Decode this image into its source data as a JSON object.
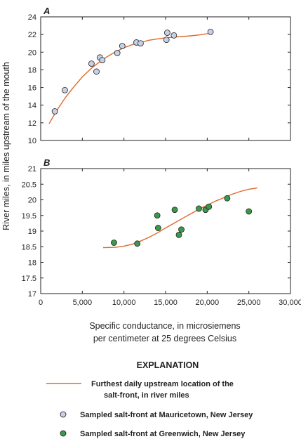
{
  "chart_data": [
    {
      "panel": "A",
      "type": "scatter",
      "xlim": [
        0,
        30000
      ],
      "ylim": [
        10,
        24
      ],
      "xticks": [
        0,
        5000,
        10000,
        15000,
        20000,
        25000,
        30000
      ],
      "xtick_labels": [
        "0",
        "5,000",
        "10,000",
        "15,000",
        "20,000",
        "25,000",
        "30,000"
      ],
      "yticks": [
        10,
        12,
        14,
        16,
        18,
        20,
        22,
        24
      ],
      "ytick_labels": [
        "10",
        "12",
        "14",
        "16",
        "18",
        "20",
        "22",
        "24"
      ],
      "points": [
        {
          "x": 1700,
          "y": 13.3
        },
        {
          "x": 2900,
          "y": 15.7
        },
        {
          "x": 6100,
          "y": 18.7
        },
        {
          "x": 6700,
          "y": 17.8
        },
        {
          "x": 7100,
          "y": 19.4
        },
        {
          "x": 7400,
          "y": 19.1
        },
        {
          "x": 9200,
          "y": 19.9
        },
        {
          "x": 9800,
          "y": 20.7
        },
        {
          "x": 11500,
          "y": 21.1
        },
        {
          "x": 12000,
          "y": 21.0
        },
        {
          "x": 15100,
          "y": 21.4
        },
        {
          "x": 15200,
          "y": 22.2
        },
        {
          "x": 16000,
          "y": 21.9
        },
        {
          "x": 20400,
          "y": 22.3
        }
      ],
      "curve": [
        {
          "x": 1000,
          "y": 11.9
        },
        {
          "x": 2000,
          "y": 13.5
        },
        {
          "x": 3000,
          "y": 14.9
        },
        {
          "x": 4000,
          "y": 16.1
        },
        {
          "x": 5000,
          "y": 17.2
        },
        {
          "x": 6000,
          "y": 18.1
        },
        {
          "x": 7000,
          "y": 18.85
        },
        {
          "x": 8000,
          "y": 19.5
        },
        {
          "x": 9000,
          "y": 20.05
        },
        {
          "x": 10000,
          "y": 20.5
        },
        {
          "x": 11000,
          "y": 20.85
        },
        {
          "x": 12000,
          "y": 21.1
        },
        {
          "x": 13000,
          "y": 21.35
        },
        {
          "x": 14000,
          "y": 21.5
        },
        {
          "x": 15000,
          "y": 21.62
        },
        {
          "x": 16000,
          "y": 21.7
        },
        {
          "x": 17000,
          "y": 21.77
        },
        {
          "x": 18000,
          "y": 21.85
        },
        {
          "x": 19000,
          "y": 21.95
        },
        {
          "x": 20000,
          "y": 22.1
        },
        {
          "x": 20500,
          "y": 22.2
        }
      ],
      "point_color": "#c6d1e6",
      "curve_color": "#e0682c"
    },
    {
      "panel": "B",
      "type": "scatter",
      "xlim": [
        0,
        30000
      ],
      "ylim": [
        17,
        21
      ],
      "xticks": [
        0,
        5000,
        10000,
        15000,
        20000,
        25000,
        30000
      ],
      "xtick_labels": [
        "0",
        "5,000",
        "10,000",
        "15,000",
        "20,000",
        "25,000",
        "30,000"
      ],
      "yticks": [
        17,
        17.5,
        18,
        18.5,
        19,
        19.5,
        20,
        20.5,
        21
      ],
      "ytick_labels": [
        "17",
        "17.5",
        "18",
        "18.5",
        "19",
        "19.5",
        "20",
        "20.5",
        "21"
      ],
      "points": [
        {
          "x": 8800,
          "y": 18.63
        },
        {
          "x": 11600,
          "y": 18.6
        },
        {
          "x": 14000,
          "y": 19.5
        },
        {
          "x": 14100,
          "y": 19.1
        },
        {
          "x": 16100,
          "y": 19.68
        },
        {
          "x": 16600,
          "y": 18.88
        },
        {
          "x": 16900,
          "y": 19.05
        },
        {
          "x": 19000,
          "y": 19.72
        },
        {
          "x": 19800,
          "y": 19.68
        },
        {
          "x": 20200,
          "y": 19.78
        },
        {
          "x": 22400,
          "y": 20.05
        },
        {
          "x": 25000,
          "y": 19.63
        }
      ],
      "curve": [
        {
          "x": 7500,
          "y": 18.47
        },
        {
          "x": 9000,
          "y": 18.48
        },
        {
          "x": 10000,
          "y": 18.52
        },
        {
          "x": 11000,
          "y": 18.58
        },
        {
          "x": 12000,
          "y": 18.68
        },
        {
          "x": 13000,
          "y": 18.8
        },
        {
          "x": 14000,
          "y": 18.94
        },
        {
          "x": 15000,
          "y": 19.1
        },
        {
          "x": 16000,
          "y": 19.25
        },
        {
          "x": 17000,
          "y": 19.4
        },
        {
          "x": 18000,
          "y": 19.55
        },
        {
          "x": 19000,
          "y": 19.7
        },
        {
          "x": 20000,
          "y": 19.83
        },
        {
          "x": 21000,
          "y": 19.96
        },
        {
          "x": 22000,
          "y": 20.07
        },
        {
          "x": 23000,
          "y": 20.18
        },
        {
          "x": 24000,
          "y": 20.27
        },
        {
          "x": 25000,
          "y": 20.34
        },
        {
          "x": 26000,
          "y": 20.38
        }
      ],
      "point_color": "#3a9a4a",
      "curve_color": "#e0682c"
    }
  ],
  "y_axis_label": "River miles, in miles upstream of the mouth",
  "x_axis_label_line1": "Specific conductance, in microsiemens",
  "x_axis_label_line2": "per centimeter at 25 degrees Celsius",
  "explanation": {
    "title": "EXPLANATION",
    "line_label_1": "Furthest daily upstream location of the",
    "line_label_2": "salt-front, in river miles",
    "mauricetown_label": "Sampled salt-front at Mauricetown, New Jersey",
    "greenwich_label": "Sampled salt-front at Greenwich, New Jersey"
  }
}
